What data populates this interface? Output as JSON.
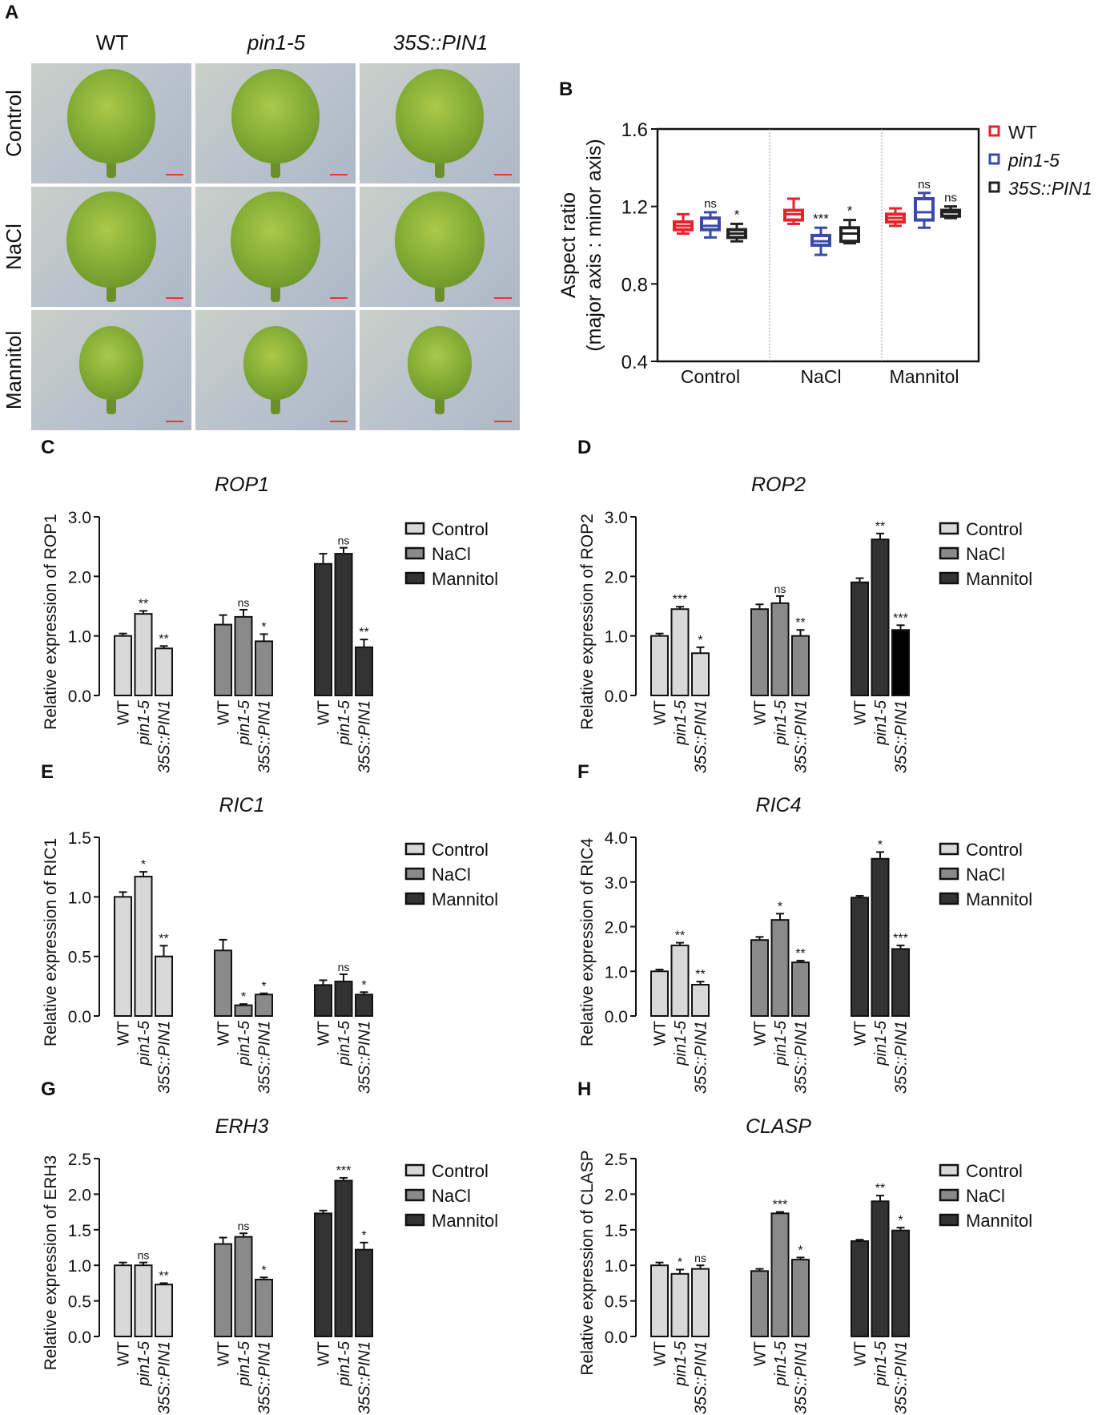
{
  "panels": {
    "A": "A",
    "B": "B",
    "C": "C",
    "D": "D",
    "E": "E",
    "F": "F",
    "G": "G",
    "H": "H"
  },
  "panelA": {
    "columns": [
      "WT",
      "pin1-5",
      "35S::PIN1"
    ],
    "rows": [
      "Control",
      "NaCl",
      "Mannitol"
    ]
  },
  "colors": {
    "control": "#d8d8d8",
    "nacl": "#8a8a8a",
    "mannitol": "#333333",
    "wt": "#e8212b",
    "pin": "#3a4aa8",
    "oe": "#222222"
  },
  "chart_data": [
    {
      "type": "box",
      "ylabel": [
        "Aspect ratio",
        "(major axis : minor axis)"
      ],
      "ylim": [
        0.4,
        1.6
      ],
      "yticks": [
        "0.4",
        "0.8",
        "1.2",
        "1.6"
      ],
      "categories": [
        "Control",
        "NaCl",
        "Mannitol"
      ],
      "legend": [
        "WT",
        "pin1-5",
        "35S::PIN1"
      ],
      "boxes": [
        [
          [
            1.06,
            1.08,
            1.1,
            1.12,
            1.16
          ],
          [
            1.04,
            1.08,
            1.1,
            1.14,
            1.17
          ],
          [
            1.02,
            1.04,
            1.06,
            1.08,
            1.11
          ]
        ],
        [
          [
            1.11,
            1.13,
            1.16,
            1.18,
            1.24
          ],
          [
            0.95,
            1.0,
            1.02,
            1.05,
            1.09
          ],
          [
            1.01,
            1.02,
            1.06,
            1.09,
            1.13
          ]
        ],
        [
          [
            1.1,
            1.12,
            1.14,
            1.16,
            1.19
          ],
          [
            1.09,
            1.13,
            1.17,
            1.24,
            1.27
          ],
          [
            1.14,
            1.15,
            1.17,
            1.18,
            1.2
          ]
        ]
      ],
      "sig": [
        [
          "",
          "ns",
          "*"
        ],
        [
          "",
          "***",
          "*"
        ],
        [
          "",
          "ns",
          "ns"
        ]
      ]
    },
    {
      "type": "bar",
      "title": "ROP1",
      "ylabel": "Relative expression of ROP1",
      "ylim": [
        0,
        3
      ],
      "yticks": [
        "0.0",
        "1.0",
        "2.0",
        "3.0"
      ],
      "legend": [
        "Control",
        " NaCl",
        "Mannitol"
      ],
      "xticks": [
        "WT",
        "pin1-5",
        "35S::PIN1"
      ],
      "values": [
        [
          1.0,
          1.37,
          0.79
        ],
        [
          1.19,
          1.32,
          0.91
        ],
        [
          2.21,
          2.38,
          0.81
        ]
      ],
      "errors": [
        [
          0.04,
          0.05,
          0.04
        ],
        [
          0.16,
          0.12,
          0.12
        ],
        [
          0.17,
          0.1,
          0.13
        ]
      ],
      "sig": [
        [
          "",
          "**",
          "**"
        ],
        [
          "",
          "ns",
          "*"
        ],
        [
          "",
          "ns",
          "**"
        ]
      ]
    },
    {
      "type": "bar",
      "title": "ROP2",
      "ylabel": "Relative expression of ROP2",
      "ylim": [
        0,
        3
      ],
      "yticks": [
        "0.0",
        "1.0",
        "2.0",
        "3.0"
      ],
      "legend": [
        "Control",
        "NaCl",
        "Mannitol"
      ],
      "xticks": [
        "WT",
        "pin1-5",
        "35S::PIN1"
      ],
      "values": [
        [
          1.0,
          1.45,
          0.71
        ],
        [
          1.45,
          1.55,
          1.0
        ],
        [
          1.9,
          2.62,
          1.1
        ]
      ],
      "errors": [
        [
          0.04,
          0.04,
          0.1
        ],
        [
          0.08,
          0.12,
          0.1
        ],
        [
          0.07,
          0.1,
          0.08
        ]
      ],
      "sig": [
        [
          "",
          "***",
          "*"
        ],
        [
          "",
          "ns",
          "**"
        ],
        [
          "",
          "**",
          "***"
        ]
      ]
    },
    {
      "type": "bar",
      "title": "RIC1",
      "ylabel": "Relative expression of RIC1",
      "ylim": [
        0,
        1.5
      ],
      "yticks": [
        "0.0",
        "0.5",
        "1.0",
        "1.5"
      ],
      "legend": [
        "Control",
        "NaCl",
        "Mannitol"
      ],
      "xticks": [
        "WT",
        "pin1-5",
        "35S::PIN1"
      ],
      "values": [
        [
          1.0,
          1.17,
          0.5
        ],
        [
          0.55,
          0.09,
          0.18
        ],
        [
          0.26,
          0.29,
          0.18
        ]
      ],
      "errors": [
        [
          0.04,
          0.04,
          0.09
        ],
        [
          0.09,
          0.01,
          0.01
        ],
        [
          0.04,
          0.06,
          0.02
        ]
      ],
      "sig": [
        [
          "",
          "*",
          "**"
        ],
        [
          "",
          "*",
          "*"
        ],
        [
          "",
          "ns",
          "*"
        ]
      ]
    },
    {
      "type": "bar",
      "title": "RIC4",
      "ylabel": "Relative expression of RIC4",
      "ylim": [
        0,
        4
      ],
      "yticks": [
        "0.0",
        "1.0",
        "2.0",
        "3.0",
        "4.0"
      ],
      "legend": [
        "Control",
        "NaCl",
        "Mannitol"
      ],
      "xticks": [
        "WT",
        "pin1-5",
        "35S::PIN1"
      ],
      "values": [
        [
          1.0,
          1.58,
          0.7
        ],
        [
          1.7,
          2.15,
          1.2
        ],
        [
          2.65,
          3.52,
          1.5
        ]
      ],
      "errors": [
        [
          0.04,
          0.06,
          0.07
        ],
        [
          0.07,
          0.14,
          0.04
        ],
        [
          0.04,
          0.15,
          0.08
        ]
      ],
      "sig": [
        [
          "",
          "**",
          "**"
        ],
        [
          "",
          "*",
          "**"
        ],
        [
          "",
          "*",
          "***"
        ]
      ]
    },
    {
      "type": "bar",
      "title": "ERH3",
      "ylabel": "Relative expression of ERH3",
      "ylim": [
        0,
        2.5
      ],
      "yticks": [
        "0.0",
        "0.5",
        "1.0",
        "1.5",
        "2.0",
        "2.5"
      ],
      "legend": [
        "Control",
        "NaCl",
        "Mannitol"
      ],
      "xticks": [
        "WT",
        "pin1-5",
        "35S::PIN1"
      ],
      "values": [
        [
          1.0,
          1.0,
          0.73
        ],
        [
          1.3,
          1.4,
          0.8
        ],
        [
          1.73,
          2.19,
          1.22
        ]
      ],
      "errors": [
        [
          0.04,
          0.04,
          0.02
        ],
        [
          0.09,
          0.05,
          0.03
        ],
        [
          0.04,
          0.04,
          0.1
        ]
      ],
      "sig": [
        [
          "",
          "ns",
          "**"
        ],
        [
          "",
          "ns",
          "*"
        ],
        [
          "",
          "***",
          "*"
        ]
      ]
    },
    {
      "type": "bar",
      "title": "CLASP",
      "ylabel": "Relative expression of CLASP",
      "ylim": [
        0,
        2.5
      ],
      "yticks": [
        "0.0",
        "0.5",
        "1.0",
        "1.5",
        "2.0",
        "2.5"
      ],
      "legend": [
        "Control",
        "NaCl",
        "Mannitol"
      ],
      "xticks": [
        "WT",
        "pin1-5",
        "35S::PIN1"
      ],
      "values": [
        [
          1.0,
          0.88,
          0.95
        ],
        [
          0.92,
          1.73,
          1.08
        ],
        [
          1.34,
          1.9,
          1.49
        ]
      ],
      "errors": [
        [
          0.04,
          0.06,
          0.05
        ],
        [
          0.03,
          0.02,
          0.03
        ],
        [
          0.02,
          0.08,
          0.04
        ]
      ],
      "sig": [
        [
          "",
          "*",
          "ns"
        ],
        [
          "",
          "***",
          "*"
        ],
        [
          "",
          "**",
          "*"
        ]
      ]
    }
  ]
}
